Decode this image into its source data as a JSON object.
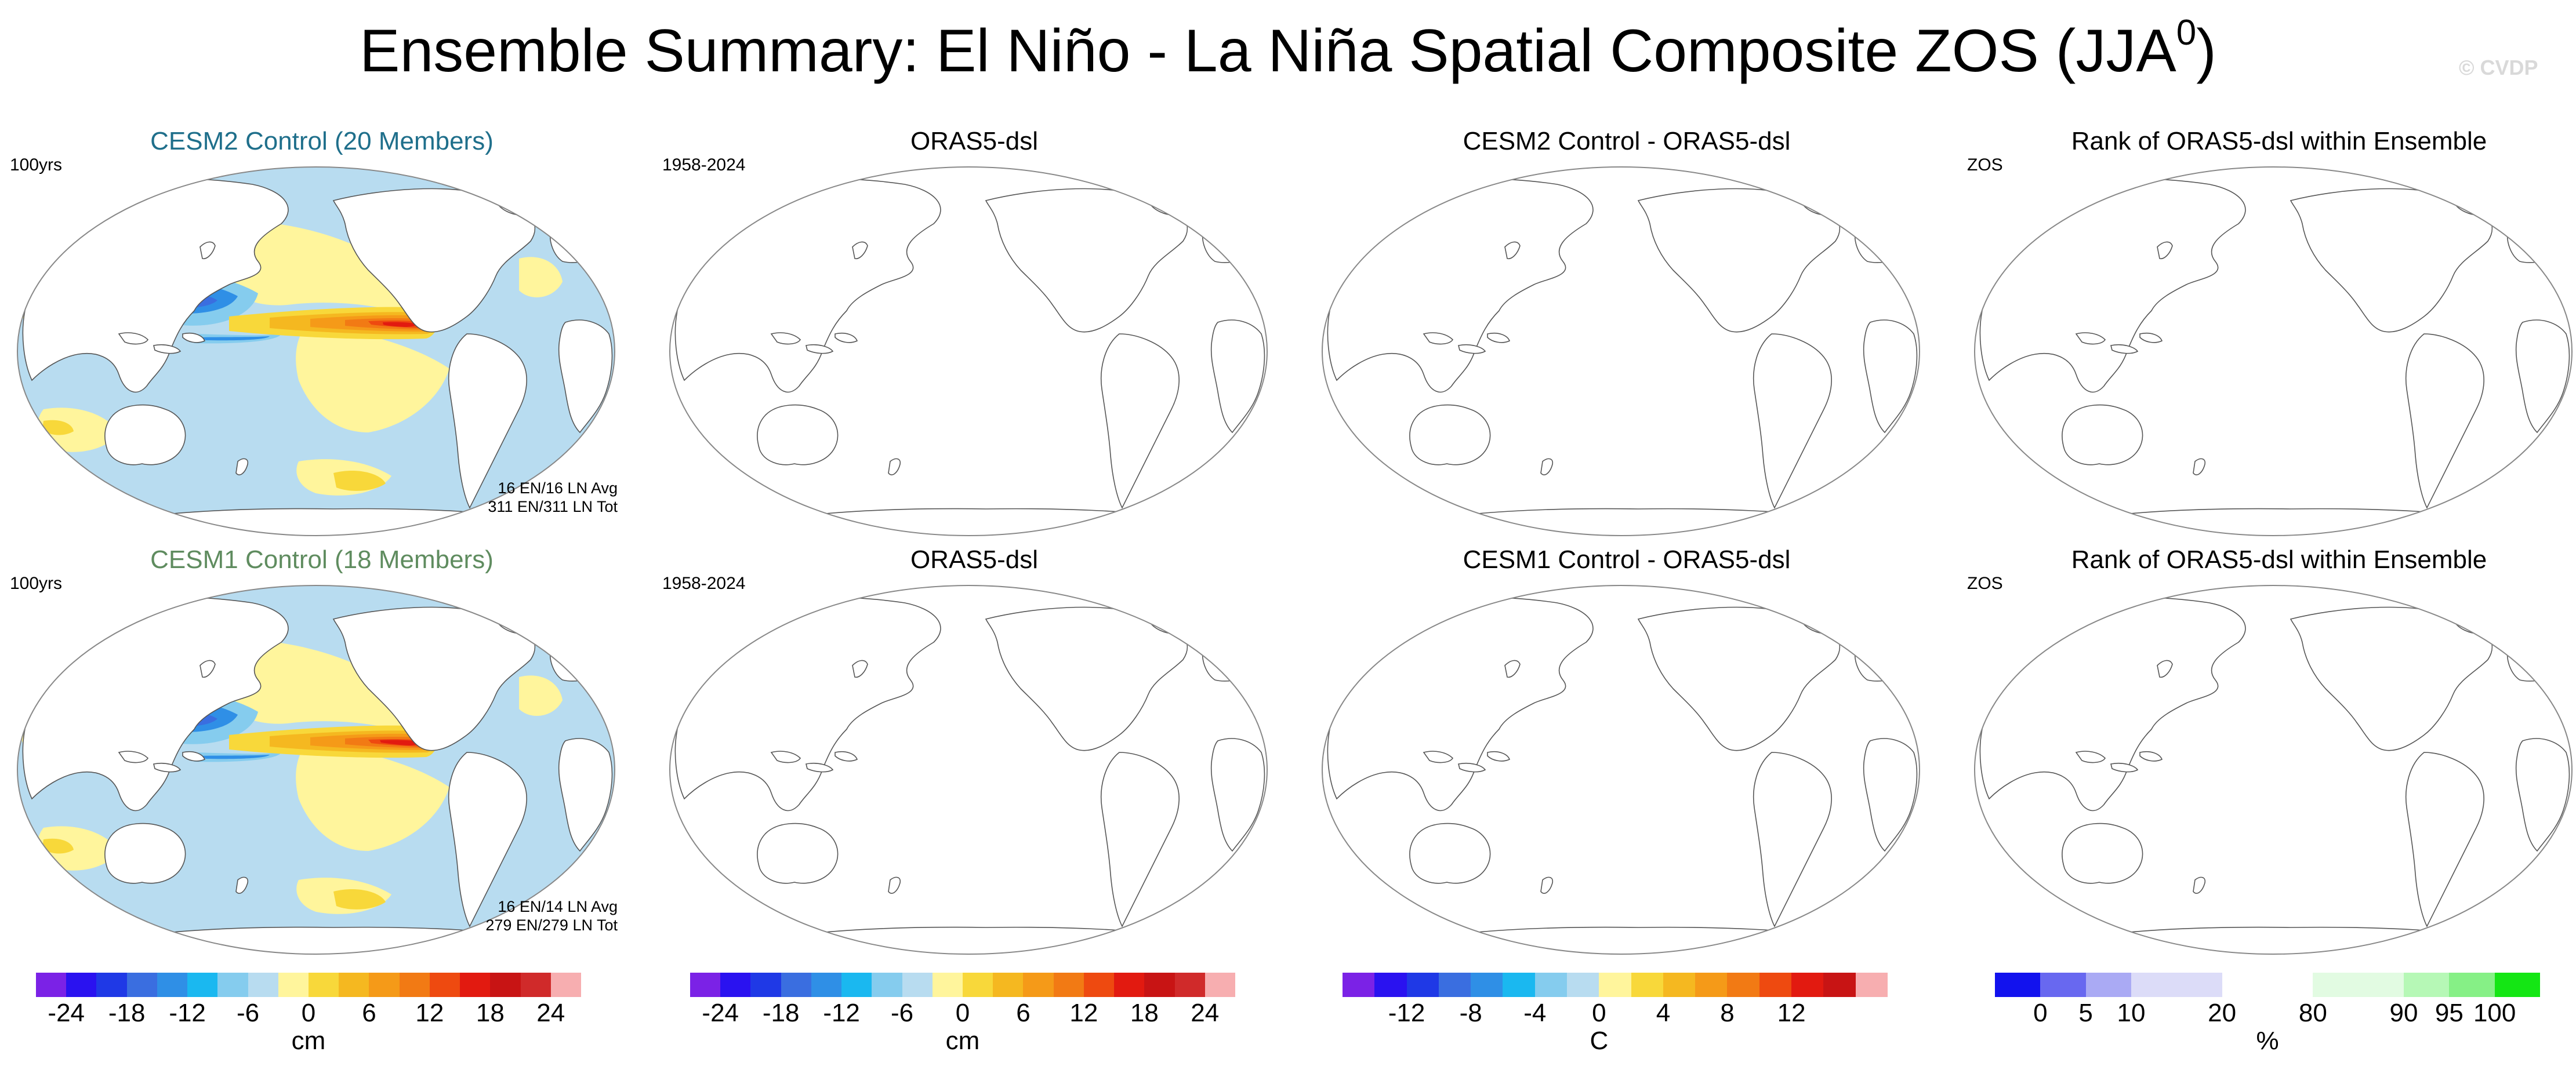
{
  "title": {
    "text": "Ensemble Summary: El Niño - La Niña Spatial Composite ZOS (JJA",
    "superscript": "0",
    "closing": ")"
  },
  "watermark": "© CVDP",
  "panels": [
    {
      "title": "CESM2 Control (20 Members)",
      "title_color": "#1f6f8b",
      "left_label": "100yrs",
      "stats": [
        "16 EN/16 LN Avg",
        "311 EN/311 LN Tot"
      ],
      "filled": true,
      "variant": 1
    },
    {
      "title": "ORAS5-dsl",
      "title_color": "#000000",
      "left_label": "1958-2024",
      "stats": [],
      "filled": false
    },
    {
      "title": "CESM2 Control - ORAS5-dsl",
      "title_color": "#000000",
      "left_label": "",
      "stats": [],
      "filled": false
    },
    {
      "title": "Rank of ORAS5-dsl within Ensemble",
      "title_color": "#000000",
      "left_label": "ZOS",
      "stats": [],
      "filled": false
    },
    {
      "title": "CESM1 Control (18 Members)",
      "title_color": "#5f8c5f",
      "left_label": "100yrs",
      "stats": [
        "16 EN/14 LN Avg",
        "279 EN/279 LN Tot"
      ],
      "filled": true,
      "variant": 2
    },
    {
      "title": "ORAS5-dsl",
      "title_color": "#000000",
      "left_label": "1958-2024",
      "stats": [],
      "filled": false
    },
    {
      "title": "CESM1 Control - ORAS5-dsl",
      "title_color": "#000000",
      "left_label": "",
      "stats": [],
      "filled": false
    },
    {
      "title": "Rank of ORAS5-dsl within Ensemble",
      "title_color": "#000000",
      "left_label": "ZOS",
      "stats": [],
      "filled": false
    }
  ],
  "colorbars": [
    {
      "unit": "cm",
      "colors": [
        "#7b22e6",
        "#2a12f0",
        "#1f39e6",
        "#3a6ee0",
        "#2f8fe6",
        "#1ab8f0",
        "#85ccee",
        "#b8dcf0",
        "#fff59c",
        "#f8d83a",
        "#f5b820",
        "#f59a18",
        "#f27a14",
        "#ee4a10",
        "#e21a10",
        "#c81414",
        "#d02a2a",
        "#f7aeb0"
      ],
      "ticks": [
        {
          "label": "-24",
          "at": 1
        },
        {
          "label": "-18",
          "at": 3
        },
        {
          "label": "-12",
          "at": 5
        },
        {
          "label": "-6",
          "at": 7
        },
        {
          "label": "0",
          "at": 9
        },
        {
          "label": "6",
          "at": 11
        },
        {
          "label": "12",
          "at": 13
        },
        {
          "label": "18",
          "at": 15
        },
        {
          "label": "24",
          "at": 17
        }
      ]
    },
    {
      "unit": "cm",
      "colors": [
        "#7b22e6",
        "#2a12f0",
        "#1f39e6",
        "#3a6ee0",
        "#2f8fe6",
        "#1ab8f0",
        "#85ccee",
        "#b8dcf0",
        "#fff59c",
        "#f8d83a",
        "#f5b820",
        "#f59a18",
        "#f27a14",
        "#ee4a10",
        "#e21a10",
        "#c81414",
        "#d02a2a",
        "#f7aeb0"
      ],
      "ticks": [
        {
          "label": "-24",
          "at": 1
        },
        {
          "label": "-18",
          "at": 3
        },
        {
          "label": "-12",
          "at": 5
        },
        {
          "label": "-6",
          "at": 7
        },
        {
          "label": "0",
          "at": 9
        },
        {
          "label": "6",
          "at": 11
        },
        {
          "label": "12",
          "at": 13
        },
        {
          "label": "18",
          "at": 15
        },
        {
          "label": "24",
          "at": 17
        }
      ]
    },
    {
      "unit": "C",
      "colors": [
        "#7b22e6",
        "#2a12f0",
        "#1f39e6",
        "#3a6ee0",
        "#2f8fe6",
        "#1ab8f0",
        "#85ccee",
        "#b8dcf0",
        "#fff59c",
        "#f8d83a",
        "#f5b820",
        "#f59a18",
        "#f27a14",
        "#ee4a10",
        "#e21a10",
        "#c81414",
        "#f7aeb0"
      ],
      "ticks": [
        {
          "label": "-12",
          "at": 2
        },
        {
          "label": "-8",
          "at": 4
        },
        {
          "label": "-4",
          "at": 6
        },
        {
          "label": "0",
          "at": 8
        },
        {
          "label": "4",
          "at": 10
        },
        {
          "label": "8",
          "at": 12
        },
        {
          "label": "12",
          "at": 14
        }
      ]
    },
    {
      "unit": "%",
      "colors": [
        "#1212ee",
        "#6868f0",
        "#aaaaf4",
        "#dcdcf8",
        "#dcdcf8",
        "#ffffff",
        "#ffffff",
        "#e2fbe2",
        "#e2fbe2",
        "#b6f8b6",
        "#86f086",
        "#14e614"
      ],
      "ticks": [
        {
          "label": "0",
          "at": 1
        },
        {
          "label": "5",
          "at": 2
        },
        {
          "label": "10",
          "at": 3
        },
        {
          "label": "20",
          "at": 5
        },
        {
          "label": "80",
          "at": 7
        },
        {
          "label": "90",
          "at": 9
        },
        {
          "label": "95",
          "at": 10
        },
        {
          "label": "100",
          "at": 11
        }
      ]
    }
  ]
}
